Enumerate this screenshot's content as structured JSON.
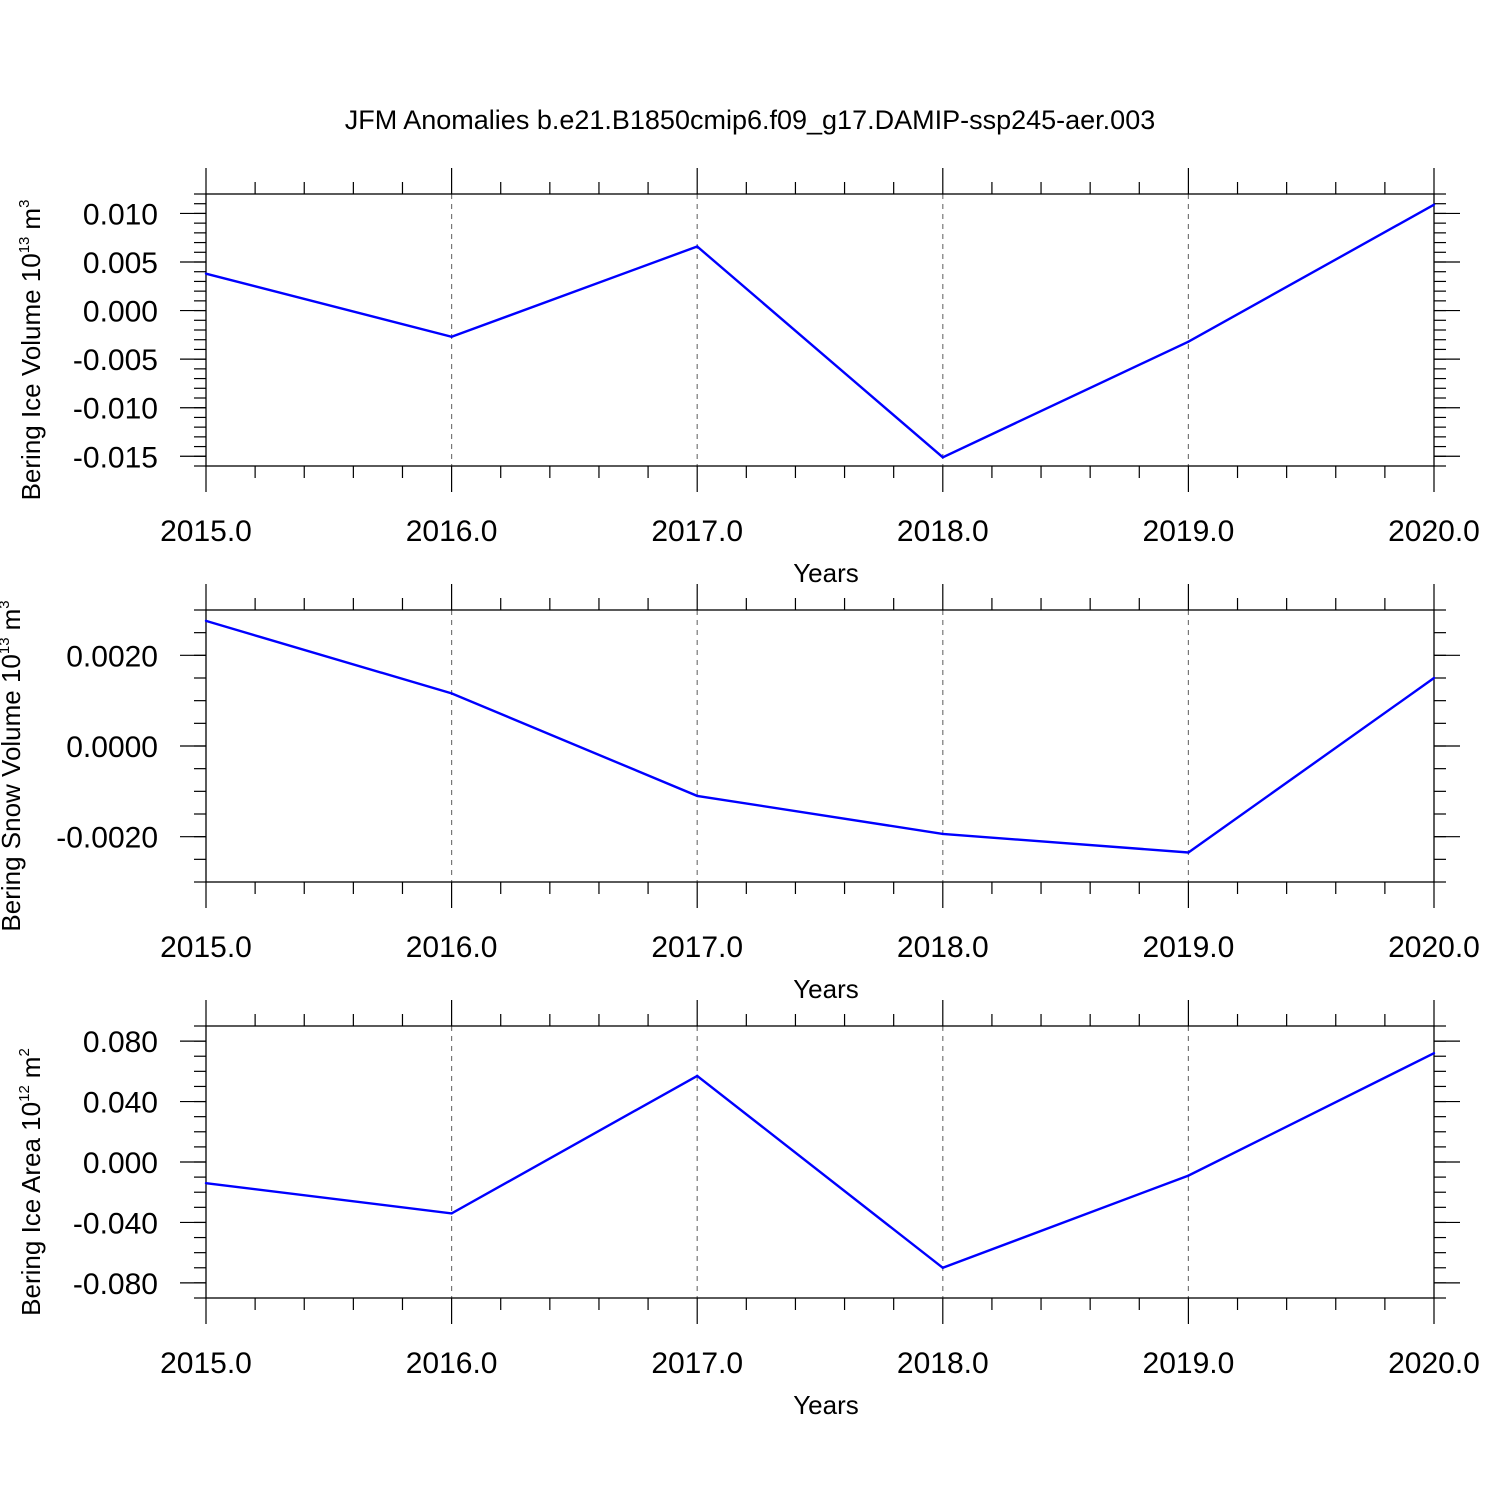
{
  "title": "JFM Anomalies b.e21.B1850cmip6.f09_g17.DAMIP-ssp245-aer.003",
  "colors": {
    "line": "#0000ff",
    "axis": "#000000",
    "grid": "#777777"
  },
  "chart_data": [
    {
      "type": "line",
      "title": "",
      "xlabel": "Years",
      "ylabel": "Bering Ice Volume 10",
      "ylabel_exponent": "13",
      "ylabel_unit": "m",
      "ylabel_unit_exponent": "3",
      "grid": "vertical dashed at major x ticks",
      "x": [
        2015,
        2016,
        2017,
        2018,
        2019,
        2020
      ],
      "x_tick_labels": [
        "2015.0",
        "2016.0",
        "2017.0",
        "2018.0",
        "2019.0",
        "2020.0"
      ],
      "xlim": [
        2015,
        2020
      ],
      "ylim": [
        -0.016,
        0.012
      ],
      "y_ticks": [
        0.01,
        0.005,
        0.0,
        -0.005,
        -0.01,
        -0.015
      ],
      "y_tick_labels": [
        "0.010",
        "0.005",
        "0.000",
        "-0.005",
        "-0.010",
        "-0.015"
      ],
      "y_minor_step": 0.001,
      "series": [
        {
          "values": [
            0.0038,
            -0.0027,
            0.0066,
            -0.0151,
            -0.0032,
            0.0109
          ]
        }
      ]
    },
    {
      "type": "line",
      "title": "",
      "xlabel": "Years",
      "ylabel": "Bering Snow Volume 10",
      "ylabel_exponent": "13",
      "ylabel_unit": "m",
      "ylabel_unit_exponent": "3",
      "grid": "vertical dashed at major x ticks",
      "x": [
        2015,
        2016,
        2017,
        2018,
        2019,
        2020
      ],
      "x_tick_labels": [
        "2015.0",
        "2016.0",
        "2017.0",
        "2018.0",
        "2019.0",
        "2020.0"
      ],
      "xlim": [
        2015,
        2020
      ],
      "ylim": [
        -0.003,
        0.003
      ],
      "y_ticks": [
        0.002,
        0.0,
        -0.002
      ],
      "y_tick_labels": [
        "0.0020",
        "0.0000",
        "-0.0020"
      ],
      "y_minor_step": 0.0005,
      "series": [
        {
          "values": [
            0.00276,
            0.00116,
            -0.0011,
            -0.00194,
            -0.00235,
            0.0015
          ]
        }
      ]
    },
    {
      "type": "line",
      "title": "",
      "xlabel": "Years",
      "ylabel": "Bering Ice Area 10",
      "ylabel_exponent": "12",
      "ylabel_unit": "m",
      "ylabel_unit_exponent": "2",
      "grid": "vertical dashed at major x ticks",
      "x": [
        2015,
        2016,
        2017,
        2018,
        2019,
        2020
      ],
      "x_tick_labels": [
        "2015.0",
        "2016.0",
        "2017.0",
        "2018.0",
        "2019.0",
        "2020.0"
      ],
      "xlim": [
        2015,
        2020
      ],
      "ylim": [
        -0.09,
        0.09
      ],
      "y_ticks": [
        0.08,
        0.04,
        0.0,
        -0.04,
        -0.08
      ],
      "y_tick_labels": [
        "0.080",
        "0.040",
        "0.000",
        "-0.040",
        "-0.080"
      ],
      "y_minor_step": 0.01,
      "series": [
        {
          "values": [
            -0.014,
            -0.034,
            0.057,
            -0.07,
            -0.009,
            0.072
          ]
        }
      ]
    }
  ]
}
